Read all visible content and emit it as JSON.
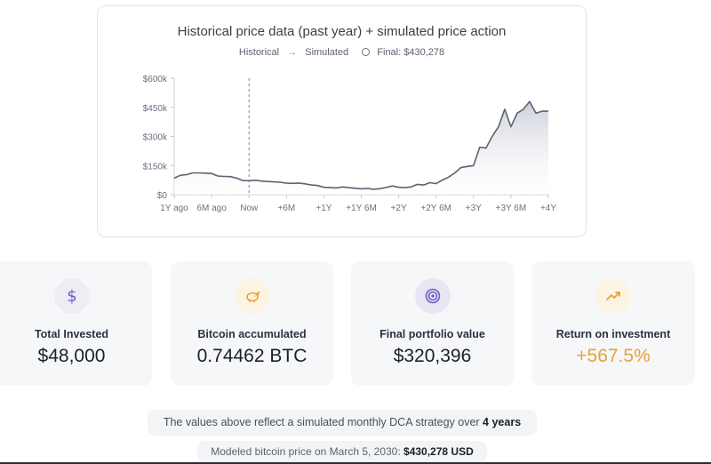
{
  "chart_card": {
    "title": "Historical price data (past year) + simulated price action",
    "legend": {
      "historical": "Historical",
      "arrow": "→",
      "simulated": "Simulated",
      "final_label": "Final: $430,278"
    }
  },
  "chart_data": {
    "type": "area",
    "title": "Historical price data (past year) + simulated price action",
    "y_ticks": [
      "$600k",
      "$450k",
      "$300k",
      "$150k",
      "$0"
    ],
    "y_tick_values": [
      600000,
      450000,
      300000,
      150000,
      0
    ],
    "x_ticks": [
      "1Y ago",
      "6M ago",
      "Now",
      "+6M",
      "+1Y",
      "+1Y 6M",
      "+2Y",
      "+2Y 6M",
      "+3Y",
      "+3Y 6M",
      "+4Y"
    ],
    "x_tick_months": [
      -12,
      -6,
      0,
      6,
      12,
      18,
      24,
      30,
      36,
      42,
      48
    ],
    "ylim": [
      0,
      600000
    ],
    "xlim_months": [
      -12,
      48
    ],
    "now_marker_month": 0,
    "series": [
      {
        "months": [
          -12,
          -11,
          -10,
          -9,
          -8,
          -7,
          -6,
          -5,
          -4,
          -3,
          -2,
          -1,
          0,
          1,
          2,
          3,
          4,
          5,
          6,
          7,
          8,
          9,
          10,
          11,
          12,
          13,
          14,
          15,
          16,
          17,
          18,
          19,
          20,
          21,
          22,
          23,
          24,
          25,
          26,
          27,
          28,
          29,
          30,
          31,
          32,
          33,
          34,
          35,
          36,
          37,
          38,
          39,
          40,
          41,
          42,
          43,
          44,
          45,
          46,
          47,
          48
        ],
        "values": [
          85000,
          100000,
          103000,
          112000,
          112000,
          111000,
          109000,
          96000,
          94000,
          93000,
          85000,
          73000,
          72000,
          74000,
          70000,
          68000,
          66000,
          64000,
          59000,
          58000,
          60000,
          56000,
          50000,
          47000,
          38000,
          36000,
          35000,
          40000,
          36000,
          33000,
          30000,
          32000,
          28000,
          31000,
          37000,
          45000,
          38000,
          36000,
          40000,
          53000,
          50000,
          62000,
          57000,
          75000,
          90000,
          112000,
          140000,
          145000,
          150000,
          245000,
          240000,
          300000,
          350000,
          440000,
          350000,
          420000,
          440000,
          480000,
          420000,
          430000,
          430278
        ]
      }
    ],
    "final_value": 430278,
    "grid": false,
    "legend_position": "top-center"
  },
  "stats": [
    {
      "label": "Total Invested",
      "value": "$48,000",
      "icon": "dollar-icon",
      "icon_bg": "#eceef3",
      "icon_color": "#6d5ac7"
    },
    {
      "label": "Bitcoin accumulated",
      "value": "0.74462 BTC",
      "icon": "piggy-bank-icon",
      "icon_bg": "#fdf3e2",
      "icon_color": "#e8a23a"
    },
    {
      "label": "Final portfolio value",
      "value": "$320,396",
      "icon": "target-icon",
      "icon_bg": "#e8e6f2",
      "icon_color": "#6d5ac7"
    },
    {
      "label": "Return on investment",
      "value": "+567.5%",
      "icon": "trending-up-icon",
      "icon_bg": "#fdf3e2",
      "icon_color": "#e8a23a",
      "value_color": "#e8a23a"
    }
  ],
  "note": {
    "prefix": "The values above reflect a simulated monthly DCA strategy over ",
    "duration": "4 years"
  },
  "model_note": {
    "prefix": "Modeled bitcoin price on March 5, 2030: ",
    "price": "$430,278 USD"
  },
  "colors": {
    "line": "#5b6272",
    "area_top": "#c9ccd6",
    "area_bottom": "#ffffff",
    "accent_orange": "#e8a23a",
    "accent_purple": "#6d5ac7"
  }
}
